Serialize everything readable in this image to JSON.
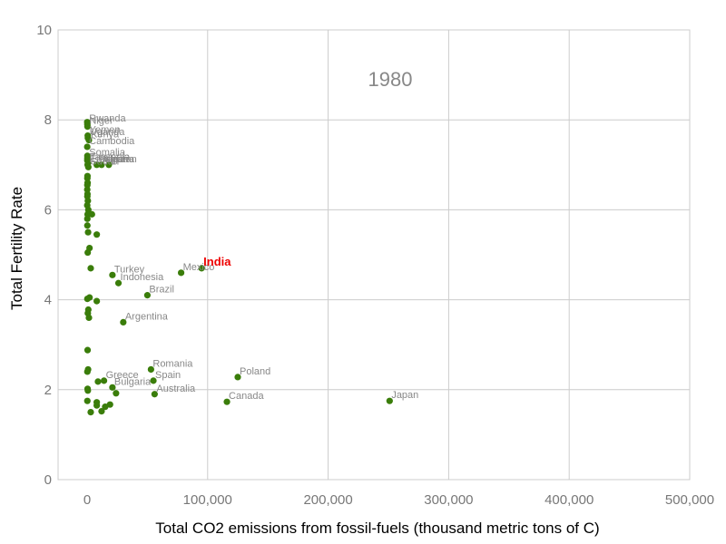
{
  "chart_data": {
    "type": "scatter",
    "title": "1980",
    "xlabel": "Total CO2 emissions from fossil-fuels (thousand metric tons of C)",
    "ylabel": "Total Fertility Rate",
    "xlim": [
      0,
      500000
    ],
    "ylim": [
      0,
      10
    ],
    "xticks": [
      0,
      100000,
      200000,
      300000,
      400000,
      500000
    ],
    "xtick_labels": [
      "0",
      "100,000",
      "200,000",
      "300,000",
      "400,000",
      "500,000"
    ],
    "yticks": [
      0,
      2,
      4,
      6,
      8,
      10
    ],
    "ytick_labels": [
      "0",
      "2",
      "4",
      "6",
      "8",
      "10"
    ],
    "grid": true,
    "legend": "none",
    "point_color": "#3a7d0a",
    "highlight_color": "#ee0000",
    "labeled_points": [
      {
        "name": "Rwanda",
        "x": 200,
        "y": 7.9
      },
      {
        "name": "Niger",
        "x": 300,
        "y": 7.85
      },
      {
        "name": "Yemen",
        "x": 500,
        "y": 7.65
      },
      {
        "name": "Uganda",
        "x": 600,
        "y": 7.6
      },
      {
        "name": "Kenya",
        "x": 1500,
        "y": 7.55
      },
      {
        "name": "Cambodia",
        "x": 100,
        "y": 7.4
      },
      {
        "name": "Somalia",
        "x": 200,
        "y": 7.15
      },
      {
        "name": "Tanzania",
        "x": 800,
        "y": 7.05
      },
      {
        "name": "Ethiopia",
        "x": 400,
        "y": 7.0
      },
      {
        "name": "Sudan",
        "x": 1000,
        "y": 6.95
      },
      {
        "name": "Pakistan",
        "x": 8000,
        "y": 7.0
      },
      {
        "name": "Iran",
        "x": 18000,
        "y": 7.0
      },
      {
        "name": "Algeria",
        "x": 12000,
        "y": 7.0
      },
      {
        "name": "Turkey",
        "x": 21000,
        "y": 4.55
      },
      {
        "name": "Indonesia",
        "x": 26000,
        "y": 4.37
      },
      {
        "name": "Mexico",
        "x": 78000,
        "y": 4.6
      },
      {
        "name": "India",
        "x": 95000,
        "y": 4.7,
        "highlight": true
      },
      {
        "name": "Brazil",
        "x": 50000,
        "y": 4.1
      },
      {
        "name": "Argentina",
        "x": 30000,
        "y": 3.5
      },
      {
        "name": "Romania",
        "x": 53000,
        "y": 2.45
      },
      {
        "name": "Greece",
        "x": 14000,
        "y": 2.2
      },
      {
        "name": "Spain",
        "x": 55000,
        "y": 2.2
      },
      {
        "name": "Bulgaria",
        "x": 21000,
        "y": 2.05
      },
      {
        "name": "Australia",
        "x": 56000,
        "y": 1.9
      },
      {
        "name": "Poland",
        "x": 125000,
        "y": 2.28
      },
      {
        "name": "Canada",
        "x": 116000,
        "y": 1.73
      },
      {
        "name": "Japan",
        "x": 251000,
        "y": 1.75
      }
    ],
    "unlabeled_points": [
      {
        "x": 100,
        "y": 7.95
      },
      {
        "x": 200,
        "y": 7.2
      },
      {
        "x": 150,
        "y": 7.1
      },
      {
        "x": 300,
        "y": 6.75
      },
      {
        "x": 200,
        "y": 6.7
      },
      {
        "x": 400,
        "y": 6.6
      },
      {
        "x": 200,
        "y": 6.55
      },
      {
        "x": 100,
        "y": 6.45
      },
      {
        "x": 300,
        "y": 6.35
      },
      {
        "x": 200,
        "y": 6.3
      },
      {
        "x": 600,
        "y": 6.2
      },
      {
        "x": 100,
        "y": 6.1
      },
      {
        "x": 1000,
        "y": 6.0
      },
      {
        "x": 400,
        "y": 5.9
      },
      {
        "x": 200,
        "y": 5.8
      },
      {
        "x": 4000,
        "y": 5.9
      },
      {
        "x": 200,
        "y": 5.65
      },
      {
        "x": 800,
        "y": 5.5
      },
      {
        "x": 8000,
        "y": 5.45
      },
      {
        "x": 2000,
        "y": 5.15
      },
      {
        "x": 500,
        "y": 5.05
      },
      {
        "x": 3000,
        "y": 4.7
      },
      {
        "x": 2000,
        "y": 4.05
      },
      {
        "x": 200,
        "y": 4.02
      },
      {
        "x": 8000,
        "y": 3.97
      },
      {
        "x": 1000,
        "y": 3.78
      },
      {
        "x": 600,
        "y": 3.7
      },
      {
        "x": 1500,
        "y": 3.6
      },
      {
        "x": 400,
        "y": 2.88
      },
      {
        "x": 800,
        "y": 2.45
      },
      {
        "x": 200,
        "y": 2.4
      },
      {
        "x": 400,
        "y": 2.02
      },
      {
        "x": 600,
        "y": 1.98
      },
      {
        "x": 9000,
        "y": 2.18
      },
      {
        "x": 200,
        "y": 1.75
      },
      {
        "x": 8000,
        "y": 1.72
      },
      {
        "x": 19000,
        "y": 1.67
      },
      {
        "x": 8000,
        "y": 1.65
      },
      {
        "x": 15000,
        "y": 1.62
      },
      {
        "x": 12000,
        "y": 1.52
      },
      {
        "x": 3000,
        "y": 1.5
      },
      {
        "x": 24000,
        "y": 1.92
      }
    ]
  }
}
